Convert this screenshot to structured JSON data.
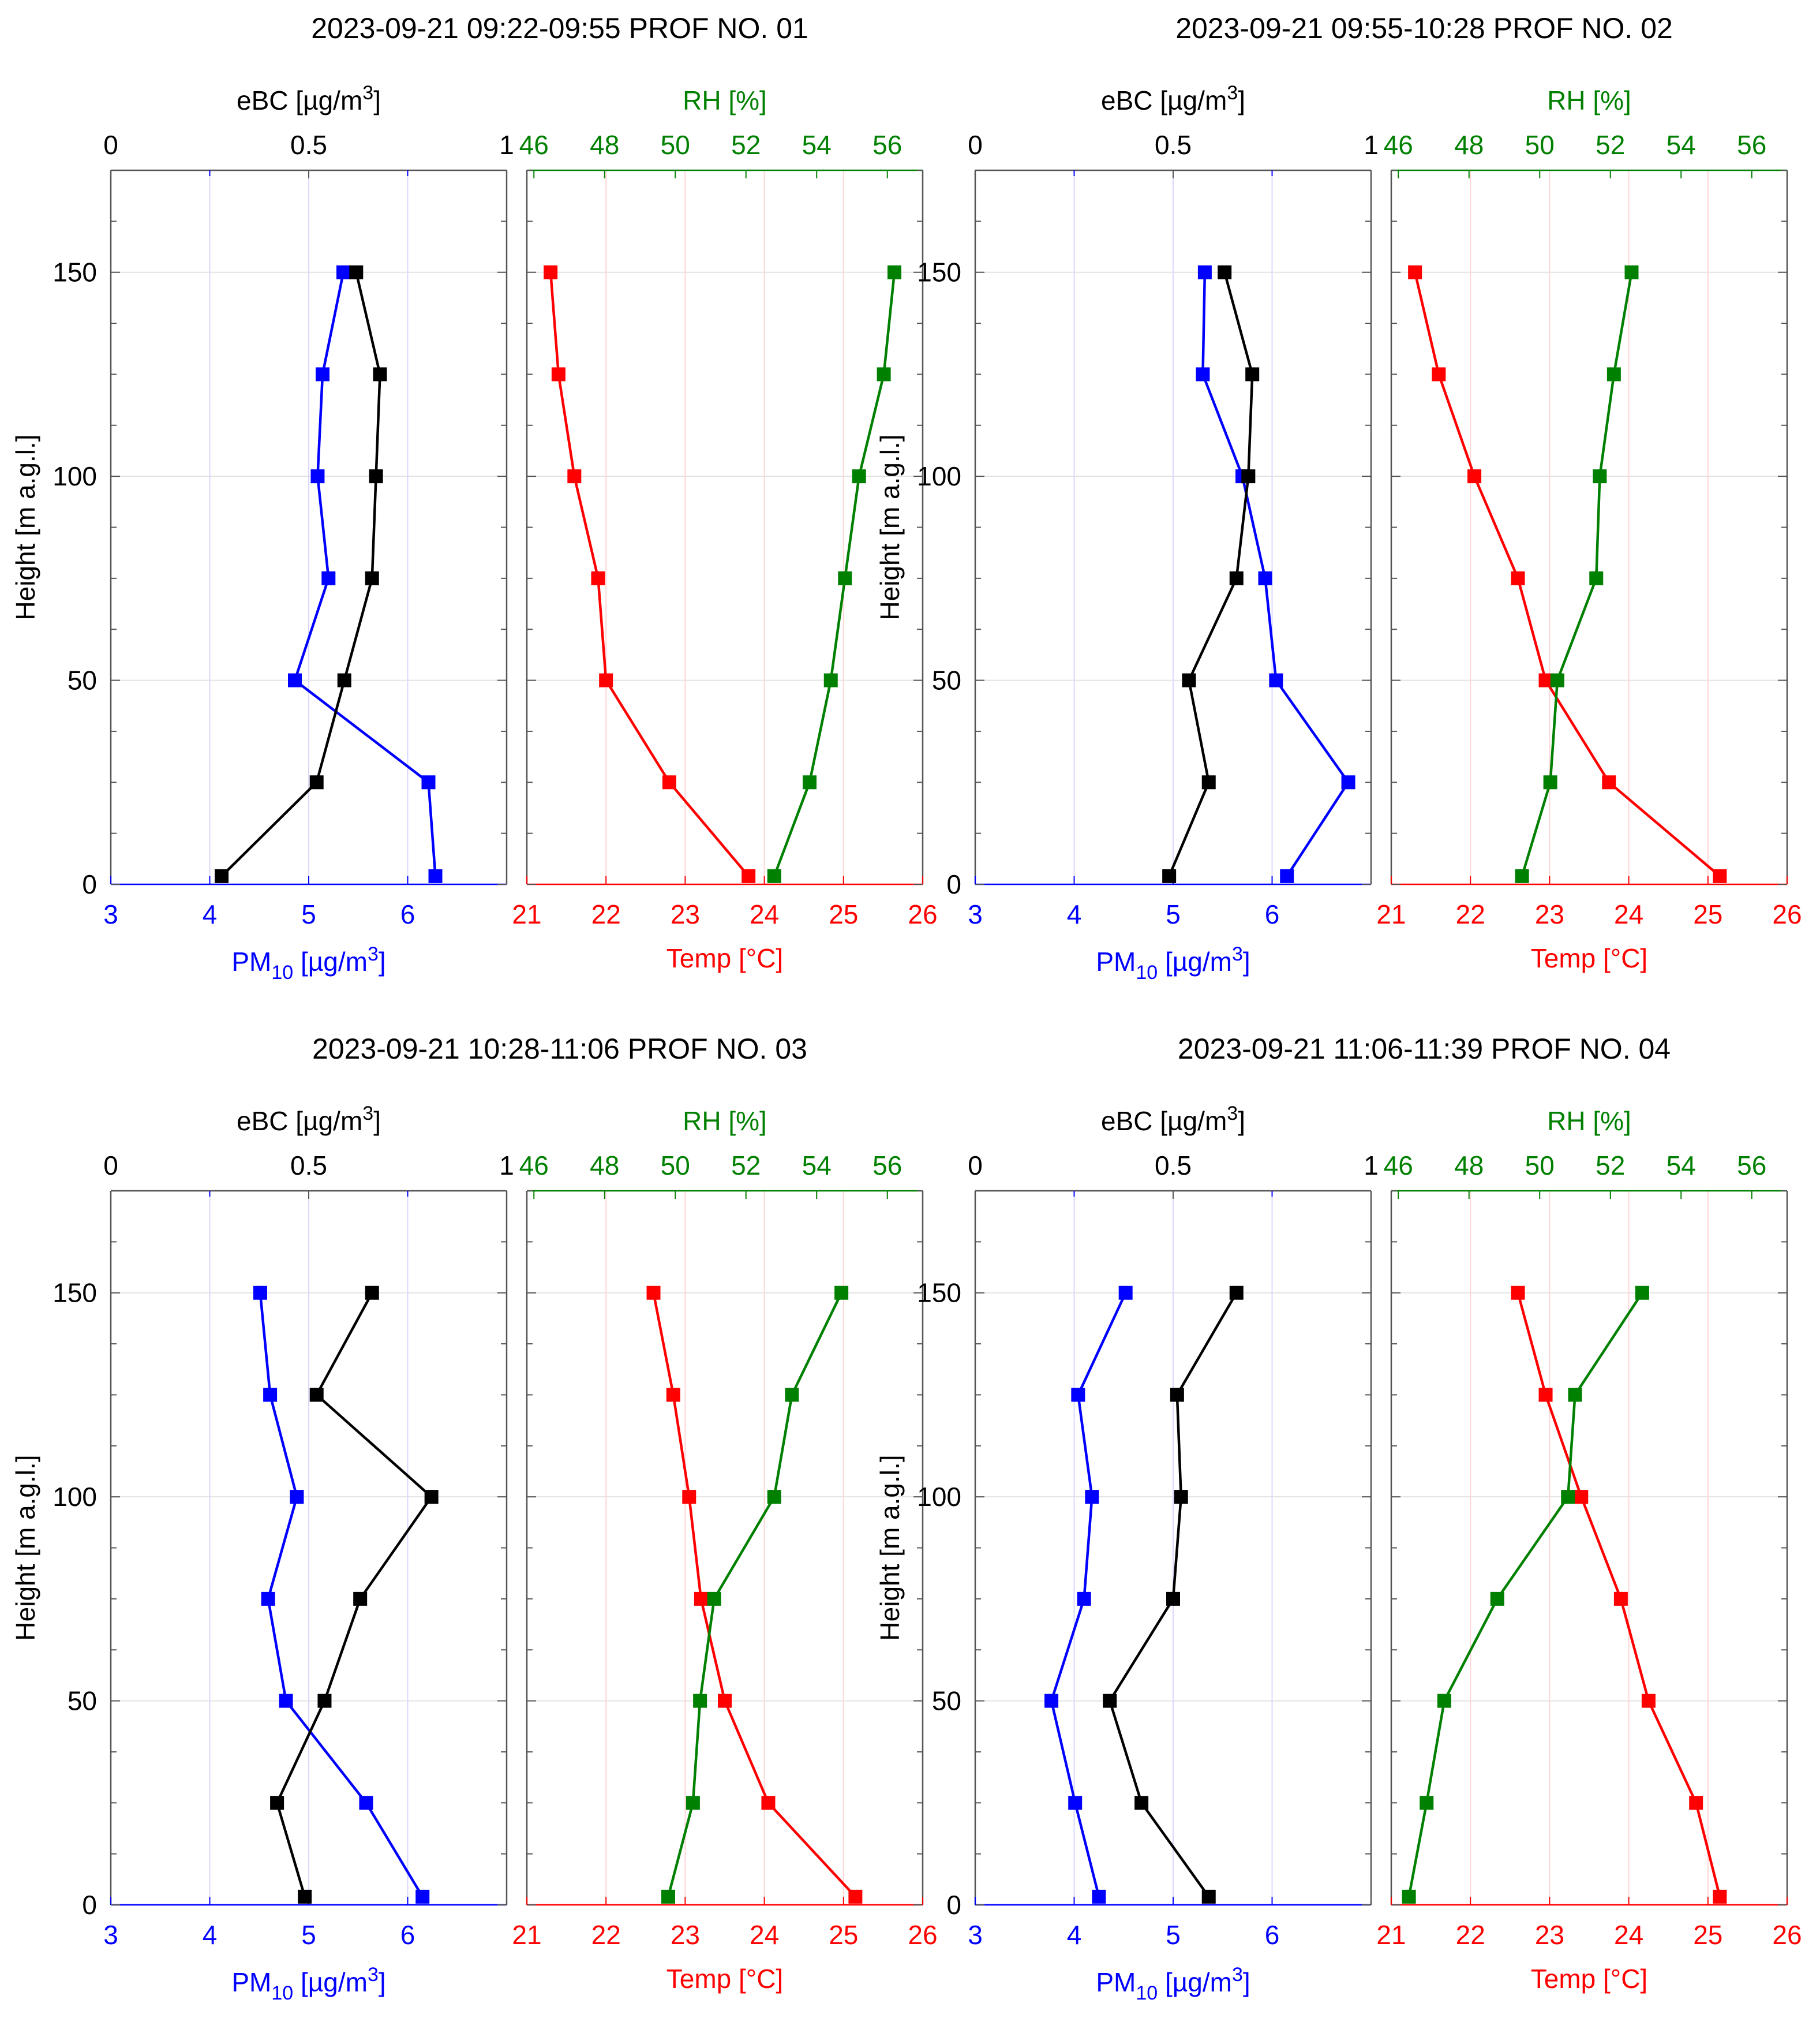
{
  "figure": {
    "y_axis": {
      "label": "Height [m a.g.l.]",
      "range": [
        0,
        175
      ],
      "ticks": [
        0,
        50,
        100,
        150
      ]
    },
    "axes": {
      "pm10": {
        "label": "PM",
        "label_sub": "10",
        "label_units": " [µg/m",
        "label_sup": "3",
        "label_close": "]",
        "range": [
          3,
          7
        ],
        "ticks": [
          3,
          4,
          5,
          6
        ],
        "color": "#0000ff"
      },
      "ebc": {
        "label": "eBC [µg/m",
        "label_sup": "3",
        "label_close": "]",
        "range": [
          0,
          1
        ],
        "ticks": [
          0,
          0.5,
          1
        ],
        "tick_labels": [
          "0",
          "0.5",
          "1"
        ],
        "color": "#000000"
      },
      "temp": {
        "label": "Temp [°C]",
        "range": [
          21,
          26
        ],
        "ticks": [
          21,
          22,
          23,
          24,
          25,
          26
        ],
        "color": "#ff0000"
      },
      "rh": {
        "label": "RH [%]",
        "range": [
          45.8,
          57
        ],
        "ticks": [
          46,
          48,
          50,
          52,
          54,
          56
        ],
        "color": "#008000"
      }
    }
  },
  "chart_data": [
    {
      "type": "line",
      "title": "2023-09-21 09:22-09:55 PROF NO. 01",
      "heights": [
        2,
        25,
        50,
        75,
        100,
        125,
        150
      ],
      "series": [
        {
          "name": "PM10",
          "axis": "pm10",
          "color": "#0000ff",
          "values": [
            6.28,
            6.21,
            4.86,
            5.2,
            5.09,
            5.14,
            5.35
          ]
        },
        {
          "name": "eBC",
          "axis": "ebc",
          "color": "#000000",
          "values": [
            0.28,
            0.52,
            0.59,
            0.66,
            0.67,
            0.68,
            0.62
          ]
        },
        {
          "name": "Temp",
          "axis": "temp",
          "color": "#ff0000",
          "values": [
            23.8,
            22.8,
            22.0,
            21.9,
            21.6,
            21.4,
            21.3
          ]
        },
        {
          "name": "RH",
          "axis": "rh",
          "color": "#008000",
          "values": [
            52.8,
            53.8,
            54.4,
            54.8,
            55.2,
            55.9,
            56.2
          ]
        }
      ]
    },
    {
      "type": "line",
      "title": "2023-09-21 09:55-10:28 PROF NO. 02",
      "heights": [
        2,
        25,
        50,
        75,
        100,
        125,
        150
      ],
      "series": [
        {
          "name": "PM10",
          "axis": "pm10",
          "color": "#0000ff",
          "values": [
            6.15,
            6.77,
            6.04,
            5.93,
            5.7,
            5.3,
            5.32
          ]
        },
        {
          "name": "eBC",
          "axis": "ebc",
          "color": "#000000",
          "values": [
            0.49,
            0.59,
            0.54,
            0.66,
            0.69,
            0.7,
            0.63
          ]
        },
        {
          "name": "Temp",
          "axis": "temp",
          "color": "#ff0000",
          "values": [
            25.15,
            23.75,
            22.95,
            22.6,
            22.05,
            21.6,
            21.3
          ]
        },
        {
          "name": "RH",
          "axis": "rh",
          "color": "#008000",
          "values": [
            49.5,
            50.3,
            50.5,
            51.6,
            51.7,
            52.1,
            52.6
          ]
        }
      ]
    },
    {
      "type": "line",
      "title": "2023-09-21 10:28-11:06 PROF NO. 03",
      "heights": [
        2,
        25,
        50,
        75,
        100,
        125,
        150
      ],
      "series": [
        {
          "name": "PM10",
          "axis": "pm10",
          "color": "#0000ff",
          "values": [
            6.15,
            5.58,
            4.77,
            4.59,
            4.88,
            4.61,
            4.51
          ]
        },
        {
          "name": "eBC",
          "axis": "ebc",
          "color": "#000000",
          "values": [
            0.49,
            0.42,
            0.54,
            0.63,
            0.81,
            0.52,
            0.66
          ]
        },
        {
          "name": "Temp",
          "axis": "temp",
          "color": "#ff0000",
          "values": [
            25.15,
            24.05,
            23.5,
            23.2,
            23.05,
            22.85,
            22.6
          ]
        },
        {
          "name": "RH",
          "axis": "rh",
          "color": "#008000",
          "values": [
            49.8,
            50.5,
            50.7,
            51.1,
            52.8,
            53.3,
            54.7
          ]
        }
      ]
    },
    {
      "type": "line",
      "title": "2023-09-21 11:06-11:39 PROF NO. 04",
      "heights": [
        2,
        25,
        50,
        75,
        100,
        125,
        150
      ],
      "series": [
        {
          "name": "PM10",
          "axis": "pm10",
          "color": "#0000ff",
          "values": [
            4.25,
            4.01,
            3.77,
            4.1,
            4.18,
            4.04,
            4.52
          ]
        },
        {
          "name": "eBC",
          "axis": "ebc",
          "color": "#000000",
          "values": [
            0.59,
            0.42,
            0.34,
            0.5,
            0.52,
            0.51,
            0.66
          ]
        },
        {
          "name": "Temp",
          "axis": "temp",
          "color": "#ff0000",
          "values": [
            25.15,
            24.85,
            24.25,
            23.9,
            23.4,
            22.95,
            22.6
          ]
        },
        {
          "name": "RH",
          "axis": "rh",
          "color": "#008000",
          "values": [
            46.3,
            46.8,
            47.3,
            48.8,
            50.8,
            51.0,
            52.9
          ]
        }
      ]
    }
  ]
}
